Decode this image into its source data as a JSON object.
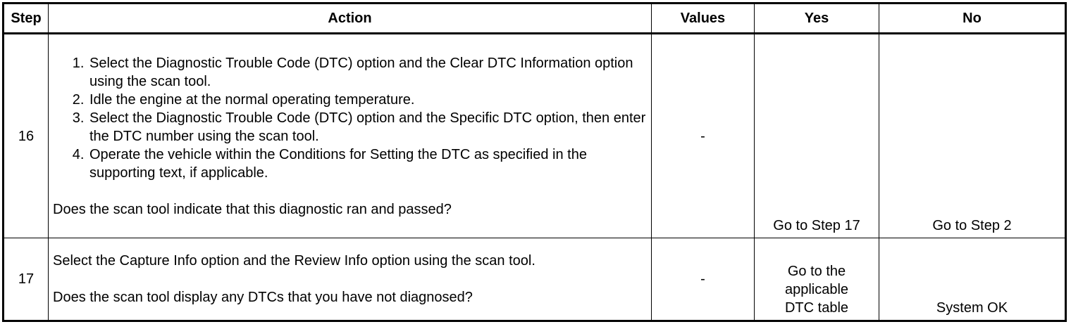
{
  "headers": [
    "Step",
    "Action",
    "Values",
    "Yes",
    "No"
  ],
  "rows": [
    {
      "step": "16",
      "actions": [
        "Select the Diagnostic Trouble Code (DTC) option and the Clear DTC Information option using the scan tool.",
        "Idle the engine at the normal operating temperature.",
        "Select the Diagnostic Trouble Code (DTC) option and the Specific DTC option, then enter the DTC number using the scan tool.",
        "Operate the vehicle within the Conditions for Setting the DTC as specified in the supporting text, if applicable."
      ],
      "question": "Does the scan tool indicate that this diagnostic ran and passed?",
      "values": "-",
      "yes": "Go to Step 17",
      "no": "Go to Step 2"
    },
    {
      "step": "17",
      "action": "Select the Capture Info option and the Review Info option using the scan tool.",
      "question": "Does the scan tool display any DTCs that you have not diagnosed?",
      "values": "-",
      "yes": "Go to the applicable DTC table",
      "no": "System OK"
    }
  ]
}
